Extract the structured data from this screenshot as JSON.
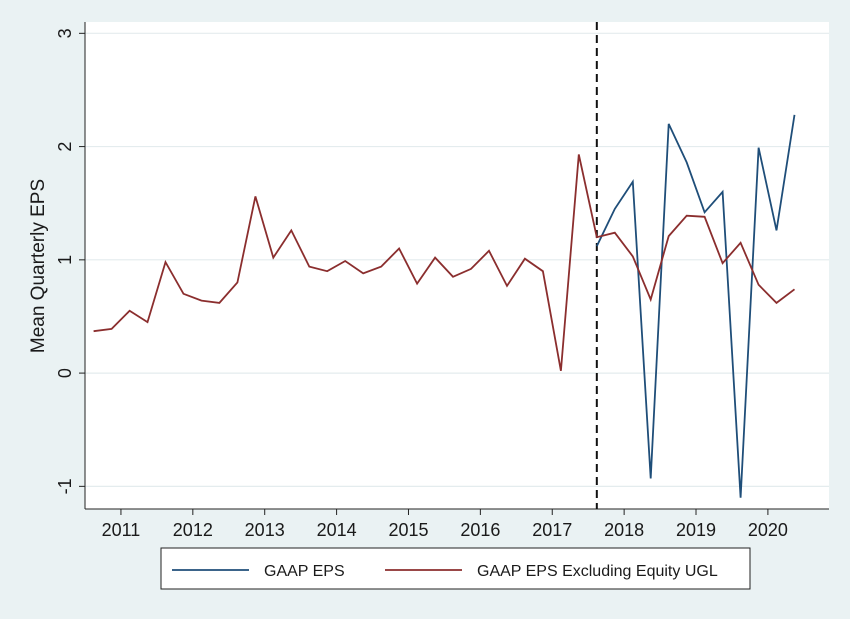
{
  "chart_data": {
    "type": "line",
    "ylabel": "Mean Quarterly EPS",
    "xlabel": "",
    "title": "",
    "xlim": [
      2010.5,
      2020.85
    ],
    "ylim": [
      -1.2,
      3.1
    ],
    "yticks": [
      -1,
      0,
      1,
      2,
      3
    ],
    "ytick_labels": [
      "-1",
      "0",
      "1",
      "2",
      "3"
    ],
    "xticks": [
      2011,
      2012,
      2013,
      2014,
      2015,
      2016,
      2017,
      2018,
      2019,
      2020
    ],
    "xtick_labels": [
      "2011",
      "2012",
      "2013",
      "2014",
      "2015",
      "2016",
      "2017",
      "2018",
      "2019",
      "2020"
    ],
    "grid": "horizontal",
    "vline": {
      "x": 2017.62,
      "style": "dashed"
    },
    "legend_position": "bottom",
    "colors": {
      "gaap": "#1f4e79",
      "excl": "#8b2e2e",
      "background": "#eaf2f3",
      "plot_bg": "#ffffff"
    },
    "series": [
      {
        "name": "GAAP EPS",
        "color": "#1f4e79",
        "points": [
          [
            2017.62,
            1.12
          ],
          [
            2017.87,
            1.45
          ],
          [
            2018.12,
            1.69
          ],
          [
            2018.37,
            -0.93
          ],
          [
            2018.62,
            2.2
          ],
          [
            2018.87,
            1.86
          ],
          [
            2019.12,
            1.42
          ],
          [
            2019.37,
            1.6
          ],
          [
            2019.62,
            -1.1
          ],
          [
            2019.87,
            1.99
          ],
          [
            2020.12,
            1.26
          ],
          [
            2020.37,
            2.28
          ]
        ]
      },
      {
        "name": "GAAP EPS Excluding Equity UGL",
        "color": "#8b2e2e",
        "points": [
          [
            2010.62,
            0.37
          ],
          [
            2010.87,
            0.39
          ],
          [
            2011.12,
            0.55
          ],
          [
            2011.37,
            0.45
          ],
          [
            2011.62,
            0.98
          ],
          [
            2011.87,
            0.7
          ],
          [
            2012.12,
            0.64
          ],
          [
            2012.37,
            0.62
          ],
          [
            2012.62,
            0.8
          ],
          [
            2012.87,
            1.56
          ],
          [
            2013.12,
            1.02
          ],
          [
            2013.37,
            1.26
          ],
          [
            2013.62,
            0.94
          ],
          [
            2013.87,
            0.9
          ],
          [
            2014.12,
            0.99
          ],
          [
            2014.37,
            0.88
          ],
          [
            2014.62,
            0.94
          ],
          [
            2014.87,
            1.1
          ],
          [
            2015.12,
            0.79
          ],
          [
            2015.37,
            1.02
          ],
          [
            2015.62,
            0.85
          ],
          [
            2015.87,
            0.92
          ],
          [
            2016.12,
            1.08
          ],
          [
            2016.37,
            0.77
          ],
          [
            2016.62,
            1.01
          ],
          [
            2016.87,
            0.9
          ],
          [
            2017.12,
            0.02
          ],
          [
            2017.37,
            1.93
          ],
          [
            2017.62,
            1.2
          ],
          [
            2017.87,
            1.24
          ],
          [
            2018.12,
            1.03
          ],
          [
            2018.37,
            0.65
          ],
          [
            2018.62,
            1.21
          ],
          [
            2018.87,
            1.39
          ],
          [
            2019.12,
            1.38
          ],
          [
            2019.37,
            0.97
          ],
          [
            2019.62,
            1.15
          ],
          [
            2019.87,
            0.78
          ],
          [
            2020.12,
            0.62
          ],
          [
            2020.37,
            0.74
          ]
        ]
      }
    ]
  }
}
